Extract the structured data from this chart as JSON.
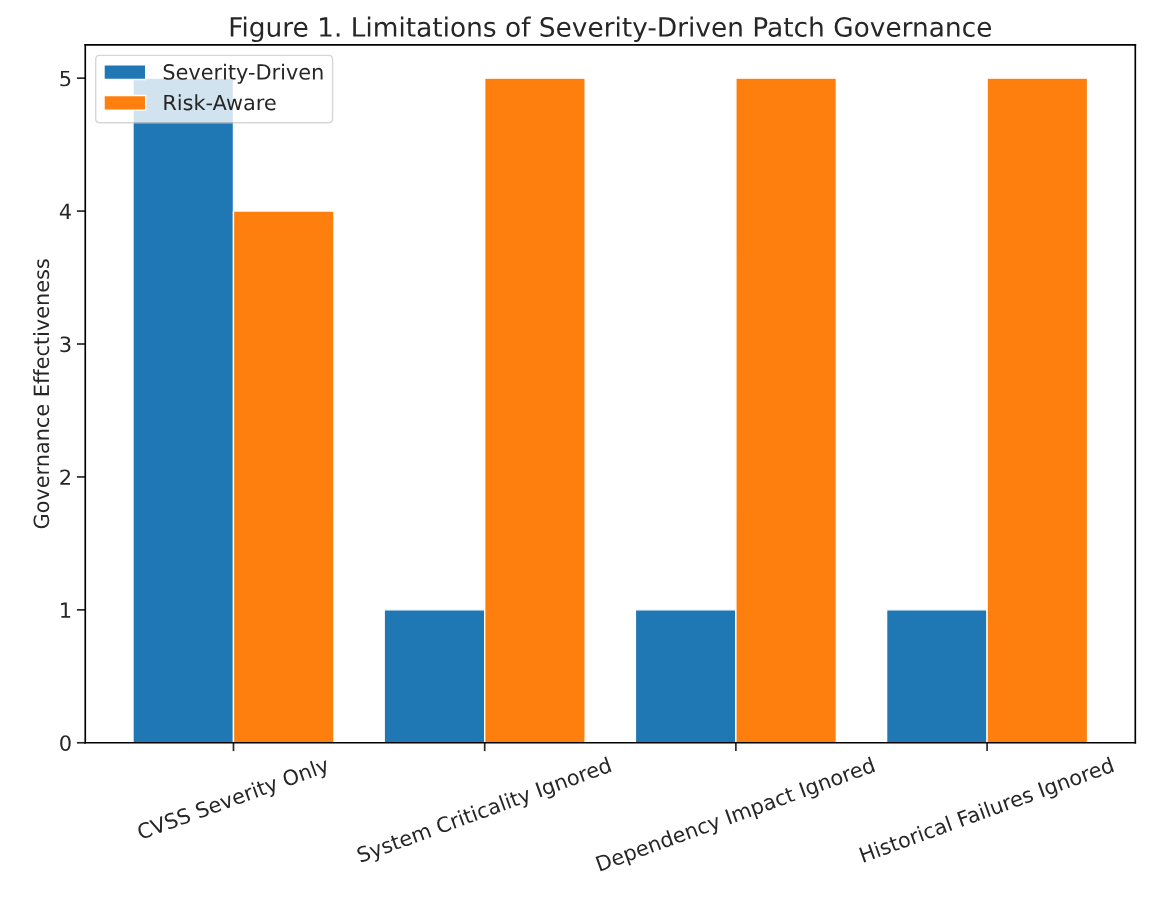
{
  "chart_data": {
    "type": "bar",
    "title": "Figure 1. Limitations of Severity-Driven Patch Governance",
    "ylabel": "Governance Effectiveness",
    "categories": [
      "CVSS Severity Only",
      "System Criticality Ignored",
      "Dependency Impact Ignored",
      "Historical Failures Ignored"
    ],
    "series": [
      {
        "name": "Severity-Driven",
        "color": "#1f77b4",
        "values": [
          5,
          1,
          1,
          1
        ]
      },
      {
        "name": "Risk-Aware",
        "color": "#ff7f0e",
        "values": [
          4,
          5,
          5,
          5
        ]
      }
    ],
    "ylim": [
      0,
      5.25
    ],
    "yticks": [
      0,
      1,
      2,
      3,
      4,
      5
    ],
    "grid": false,
    "legend": "top left"
  }
}
